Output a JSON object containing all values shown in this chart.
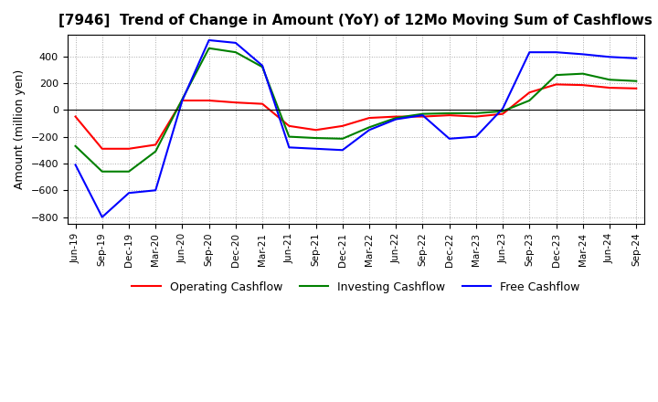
{
  "title": "[7946]  Trend of Change in Amount (YoY) of 12Mo Moving Sum of Cashflows",
  "ylabel": "Amount (million yen)",
  "ylim": [
    -850,
    560
  ],
  "yticks": [
    -800,
    -600,
    -400,
    -200,
    0,
    200,
    400
  ],
  "x_labels": [
    "Jun-19",
    "Sep-19",
    "Dec-19",
    "Mar-20",
    "Jun-20",
    "Sep-20",
    "Dec-20",
    "Mar-21",
    "Jun-21",
    "Sep-21",
    "Dec-21",
    "Mar-22",
    "Jun-22",
    "Sep-22",
    "Dec-22",
    "Mar-23",
    "Jun-23",
    "Sep-23",
    "Dec-23",
    "Mar-24",
    "Jun-24",
    "Sep-24"
  ],
  "operating": [
    -50,
    -290,
    -290,
    -260,
    70,
    70,
    55,
    45,
    -120,
    -150,
    -120,
    -60,
    -50,
    -50,
    -40,
    -50,
    -30,
    130,
    190,
    185,
    165,
    160
  ],
  "investing": [
    -270,
    -460,
    -460,
    -310,
    80,
    460,
    430,
    320,
    -200,
    -210,
    -215,
    -130,
    -60,
    -30,
    -25,
    -25,
    -10,
    70,
    260,
    270,
    225,
    215
  ],
  "free": [
    -410,
    -800,
    -620,
    -600,
    70,
    520,
    500,
    330,
    -280,
    -290,
    -300,
    -150,
    -70,
    -40,
    -215,
    -200,
    10,
    430,
    430,
    415,
    395,
    385
  ],
  "operating_color": "#ff0000",
  "investing_color": "#008000",
  "free_color": "#0000ff",
  "background_color": "#ffffff",
  "legend_labels": [
    "Operating Cashflow",
    "Investing Cashflow",
    "Free Cashflow"
  ]
}
